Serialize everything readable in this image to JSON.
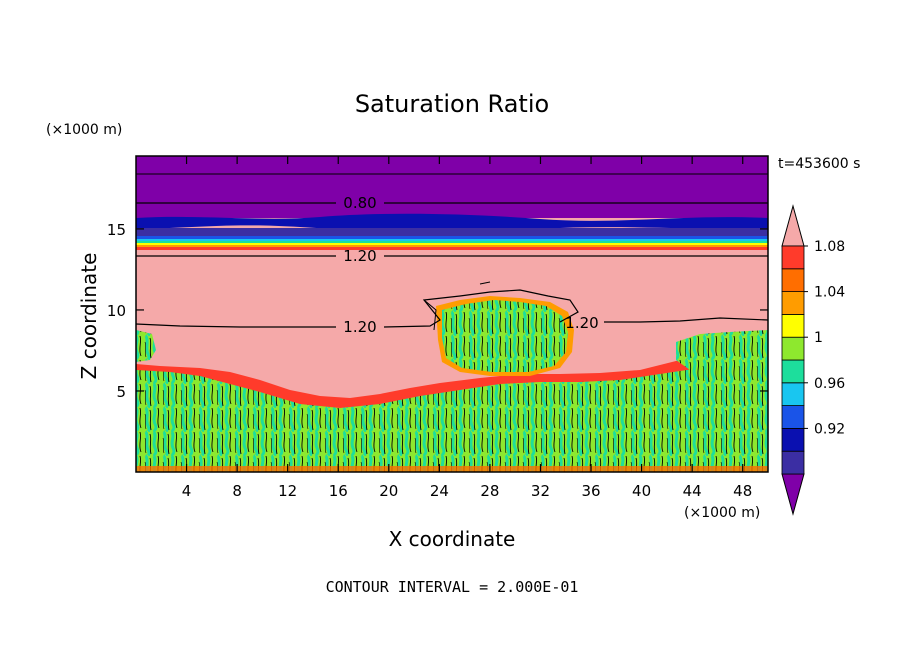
{
  "chart_data": {
    "type": "heatmap",
    "title": "Saturation Ratio",
    "xlabel": "X coordinate",
    "ylabel": "Z coordinate",
    "x_unit": "(×1000 m)",
    "y_unit": "(×1000 m)",
    "time_label": "t=453600 s",
    "footer": "CONTOUR INTERVAL = 2.000E-01",
    "xlim": [
      0,
      50
    ],
    "ylim": [
      0,
      19.5
    ],
    "x_ticks": [
      4,
      8,
      12,
      16,
      20,
      24,
      28,
      32,
      36,
      40,
      44,
      48
    ],
    "y_ticks": [
      5,
      10,
      15
    ],
    "contour_labels": [
      {
        "text": "0.80",
        "x": 18,
        "z": 16.9
      },
      {
        "text": "1.20",
        "x": 18,
        "z": 13.7
      },
      {
        "text": "1.20",
        "x": 18,
        "z": 9.2
      },
      {
        "text": "1.20",
        "x": 35,
        "z": 9.3
      }
    ],
    "colorbar": {
      "levels": [
        "0.92",
        "0.96",
        "1",
        "1.04",
        "1.08"
      ],
      "colors": [
        "#7f00a8",
        "#3b2ea3",
        "#0a10b0",
        "#1a54e8",
        "#19c6f0",
        "#1dde9c",
        "#8ee82e",
        "#ffff00",
        "#ff9c00",
        "#ff6e00",
        "#ff3b2b",
        "#f5a9a9"
      ]
    }
  }
}
